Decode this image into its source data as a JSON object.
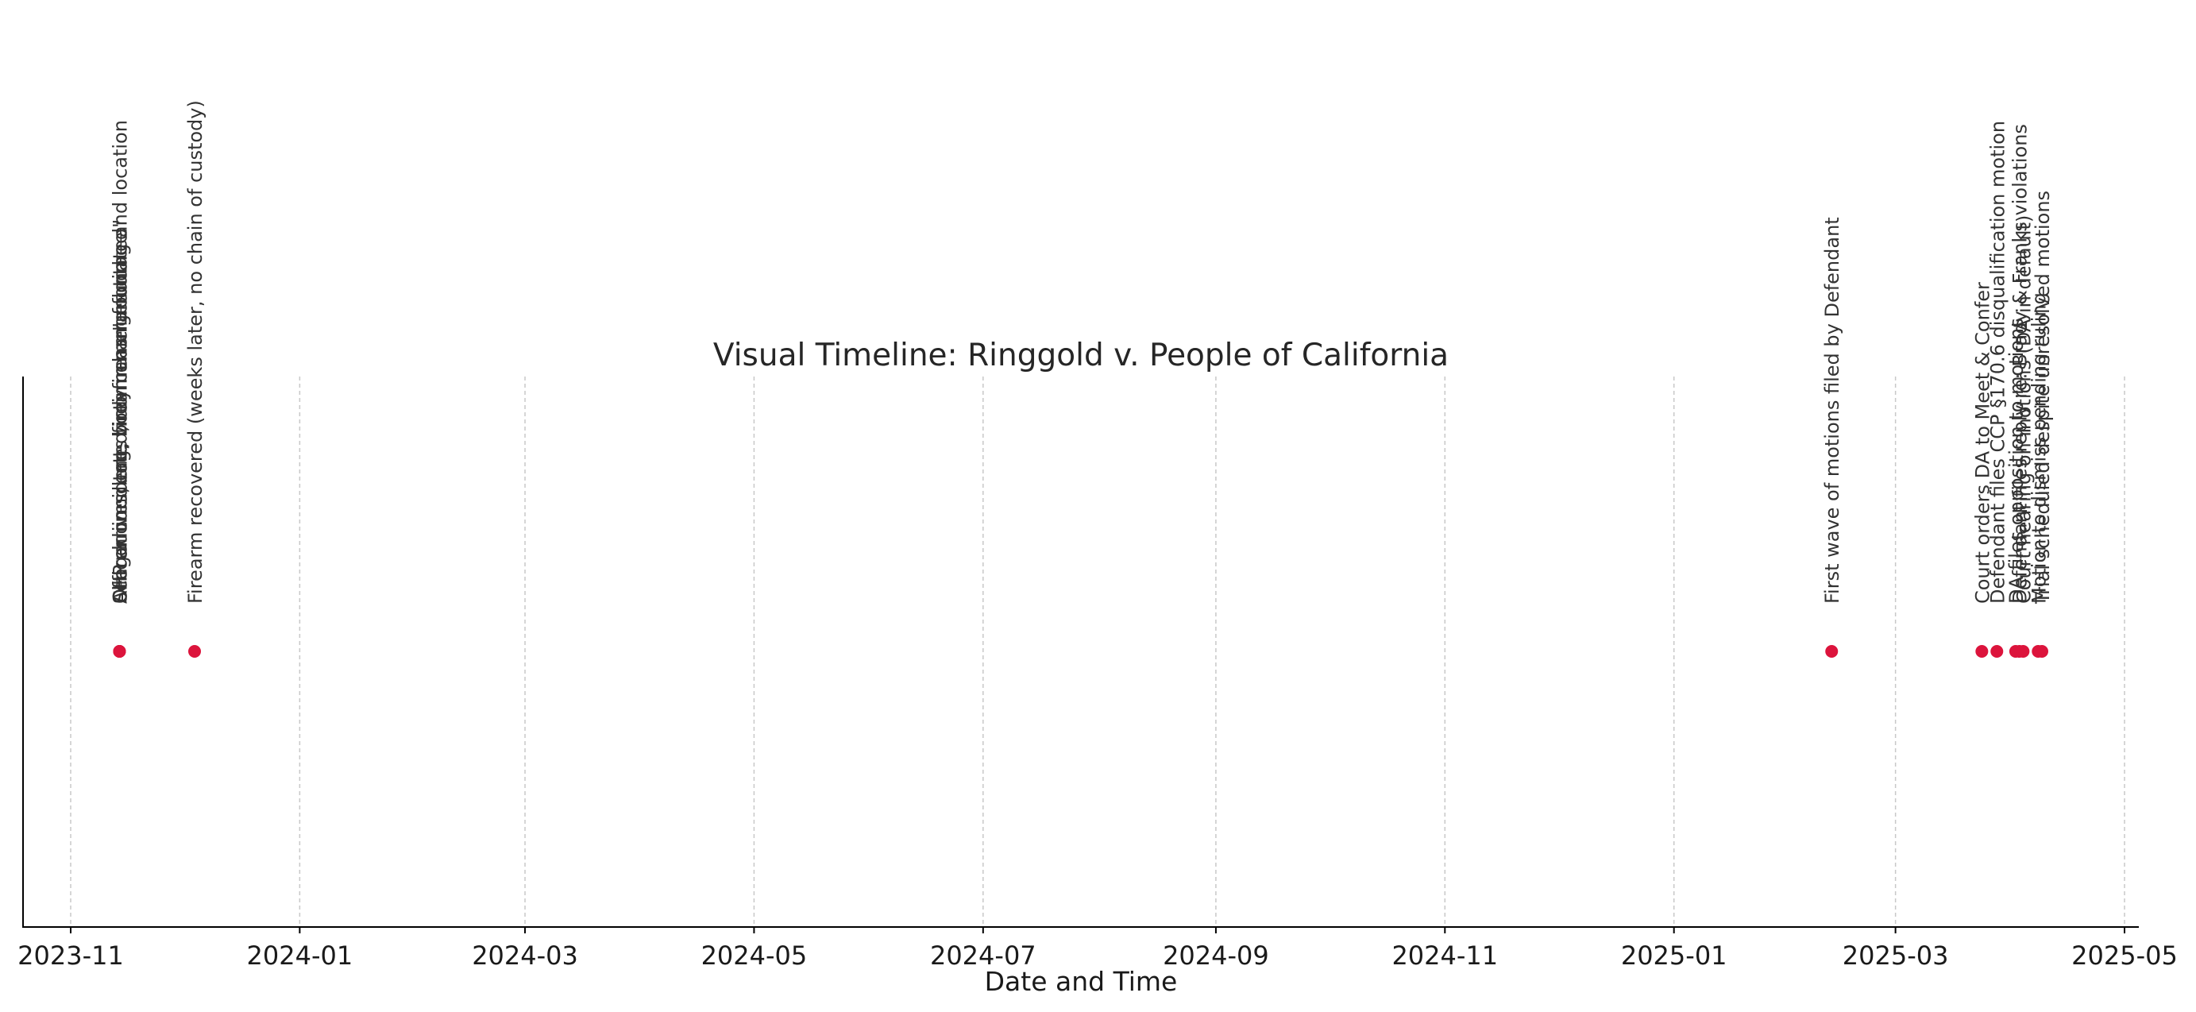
{
  "chart_data": {
    "type": "scatter",
    "title": "Visual Timeline: Ringgold v. People of California",
    "xlabel": "Date and Time",
    "ylabel": "",
    "x_axis": "date",
    "xlim": [
      "2023-10-19",
      "2025-05-09"
    ],
    "x_ticks": [
      "2023-11-01",
      "2024-01-01",
      "2024-03-01",
      "2024-05-01",
      "2024-07-01",
      "2024-09-01",
      "2024-11-01",
      "2025-01-01",
      "2025-03-01",
      "2025-05-01"
    ],
    "x_tick_labels": [
      "2023-11",
      "2024-01",
      "2024-03",
      "2024-05",
      "2024-07",
      "2024-09",
      "2024-11",
      "2025-01",
      "2025-03",
      "2025-05"
    ],
    "y_axis_visible": false,
    "grid": "vertical dashed",
    "legend": "none",
    "marker_color": "#dc143c",
    "events": [
      {
        "date": "2023-11-14",
        "label": "Alleged incident; victim changes time and location"
      },
      {
        "date": "2023-11-14",
        "label": "CHP arrives, tags firearm as \"unlocated\""
      },
      {
        "date": "2023-11-14",
        "label": "Officer on scene, body camera footage"
      },
      {
        "date": "2023-11-14",
        "label": "Search conducted, no firearm found"
      },
      {
        "date": "2023-12-04",
        "label": "Firearm recovered (weeks later, no chain of custody)"
      },
      {
        "date": "2025-02-12",
        "label": "First wave of motions filed by Defendant"
      },
      {
        "date": "2025-03-24",
        "label": "Court orders DA to Meet & Confer"
      },
      {
        "date": "2025-03-28",
        "label": "Defendant files CCP §170.6 disqualification motion"
      },
      {
        "date": "2025-04-02",
        "label": "DA files opposition to motions"
      },
      {
        "date": "2025-04-03",
        "label": "Defendant files reply re: Brady & Franks violations"
      },
      {
        "date": "2025-04-04",
        "label": "Court hearing on motions (DA in default)"
      },
      {
        "date": "2025-04-08",
        "label": "Motion to dismiss pending ruling"
      },
      {
        "date": "2025-04-09",
        "label": "Trial scheduled despite unresolved motions"
      }
    ]
  }
}
